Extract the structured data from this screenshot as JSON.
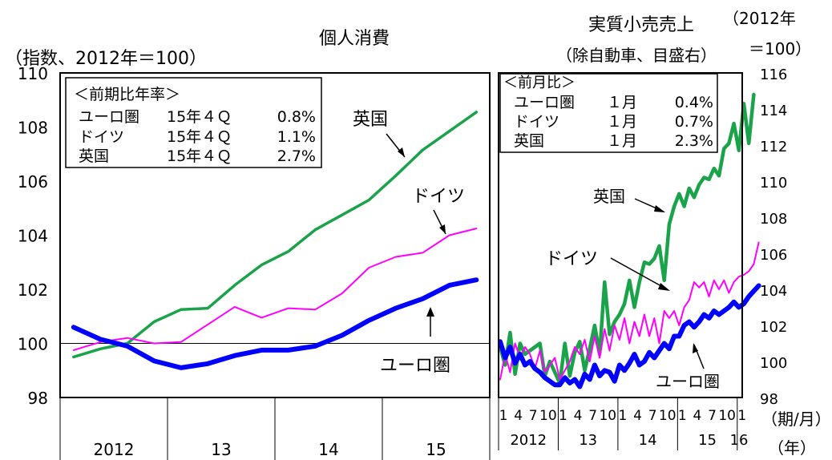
{
  "chart_data": [
    {
      "type": "line",
      "title": "個人消費",
      "ylabel": "（指数、2012年＝100）",
      "ylim": [
        98,
        110
      ],
      "yticks": [
        "98",
        "100",
        "102",
        "104",
        "106",
        "108",
        "110"
      ],
      "x_period_unit": "quarter",
      "year_labels": [
        "2012",
        "13",
        "14",
        "15"
      ],
      "grid": false,
      "series": [
        {
          "name": "英国",
          "color": "#1aa34a",
          "values": [
            99.5,
            99.8,
            100.0,
            100.8,
            101.25,
            101.3,
            102.15,
            102.9,
            103.4,
            104.2,
            104.75,
            105.3,
            106.2,
            107.15,
            107.85,
            108.55
          ]
        },
        {
          "name": "ドイツ",
          "color": "#ff00ff",
          "values": [
            99.75,
            100.05,
            100.2,
            100.0,
            100.05,
            100.7,
            101.35,
            100.95,
            101.3,
            101.25,
            101.85,
            102.8,
            103.2,
            103.35,
            104.0,
            104.25
          ]
        },
        {
          "name": "ユーロ圏",
          "color": "#0000ff",
          "values": [
            100.6,
            100.15,
            99.9,
            99.35,
            99.1,
            99.25,
            99.55,
            99.75,
            99.75,
            99.9,
            100.3,
            100.85,
            101.3,
            101.65,
            102.15,
            102.35
          ]
        }
      ],
      "annotations": [
        "英国",
        "ドイツ",
        "ユーロ圏"
      ],
      "inset_table": {
        "header": "＜前期比年率＞",
        "rows": [
          [
            "ユーロ圏",
            "15年４Ｑ",
            "0.8%"
          ],
          [
            "ドイツ",
            "15年４Ｑ",
            "1.1%"
          ],
          [
            "英国",
            "15年４Ｑ",
            "2.7%"
          ]
        ]
      }
    },
    {
      "type": "line",
      "title": "実質小売売上",
      "subtitle": "（除自動車、目盛右）",
      "ylabel": "（2012年＝100）",
      "ylim": [
        98,
        116
      ],
      "yticks": [
        "98",
        "100",
        "102",
        "104",
        "106",
        "108",
        "110",
        "112",
        "114",
        "116"
      ],
      "x_period_unit": "month",
      "x_start": "2012-01",
      "month_ticks": [
        "1",
        "4",
        "7",
        "10",
        "1",
        "4",
        "7",
        "10",
        "1",
        "4",
        "7",
        "10",
        "1",
        "4",
        "7",
        "10",
        "1"
      ],
      "year_labels": [
        "2012",
        "13",
        "14",
        "15",
        "16"
      ],
      "x_unit_label": "（期/月）",
      "year_unit_label": "（年）",
      "grid": false,
      "series": [
        {
          "name": "英国",
          "color": "#1aa34a",
          "values": [
            100.8,
            99.8,
            101.6,
            99.3,
            101.0,
            100.4,
            100.6,
            100.8,
            101.0,
            99.2,
            100.0,
            99.4,
            98.8,
            101.0,
            99.2,
            100.5,
            101.1,
            99.5,
            100.7,
            102.0,
            100.4,
            104.4,
            101.5,
            102.2,
            102.6,
            103.2,
            104.5,
            103.0,
            104.4,
            105.5,
            105.4,
            105.7,
            106.4,
            104.5,
            107.6,
            108.6,
            109.3,
            108.6,
            109.6,
            109.1,
            109.8,
            110.2,
            110.1,
            110.7,
            110.3,
            111.8,
            112.1,
            113.2,
            111.7,
            114.3,
            112.1,
            114.8
          ]
        },
        {
          "name": "ドイツ",
          "color": "#ff00ff",
          "values": [
            99.0,
            100.4,
            99.4,
            101.0,
            100.2,
            100.8,
            100.4,
            99.6,
            100.6,
            99.4,
            99.8,
            100.2,
            99.0,
            99.5,
            100.0,
            100.8,
            100.4,
            101.2,
            100.0,
            101.4,
            100.2,
            101.8,
            100.6,
            102.0,
            101.2,
            102.4,
            101.0,
            102.2,
            101.4,
            102.6,
            101.4,
            102.4,
            101.0,
            102.8,
            102.4,
            102.8,
            102.0,
            103.0,
            103.4,
            104.4,
            104.1,
            104.4,
            103.6,
            104.5,
            104.0,
            104.5,
            103.8,
            104.4,
            104.7,
            104.8,
            105.0,
            105.4,
            106.6
          ]
        },
        {
          "name": "ユーロ圏",
          "color": "#0000ff",
          "values": [
            101.1,
            100.2,
            100.8,
            99.9,
            100.4,
            99.8,
            100.0,
            99.6,
            99.4,
            99.1,
            98.9,
            98.7,
            98.7,
            99.1,
            98.8,
            99.0,
            98.6,
            99.3,
            99.0,
            99.8,
            99.2,
            99.5,
            99.4,
            98.9,
            99.8,
            99.5,
            99.9,
            100.4,
            99.8,
            100.0,
            100.5,
            100.2,
            100.6,
            101.0,
            100.7,
            101.4,
            101.4,
            102.0,
            102.2,
            101.9,
            102.2,
            102.6,
            102.4,
            102.8,
            102.6,
            102.8,
            103.0,
            103.3,
            103.0,
            103.2,
            103.6,
            103.9,
            104.2
          ]
        }
      ],
      "annotations": [
        "英国",
        "ドイツ",
        "ユーロ圏"
      ],
      "inset_table": {
        "header": "＜前月比＞",
        "rows": [
          [
            "ユーロ圏",
            "１月",
            "0.4%"
          ],
          [
            "ドイツ",
            "１月",
            "0.7%"
          ],
          [
            "英国",
            "１月",
            "2.3%"
          ]
        ]
      }
    }
  ]
}
